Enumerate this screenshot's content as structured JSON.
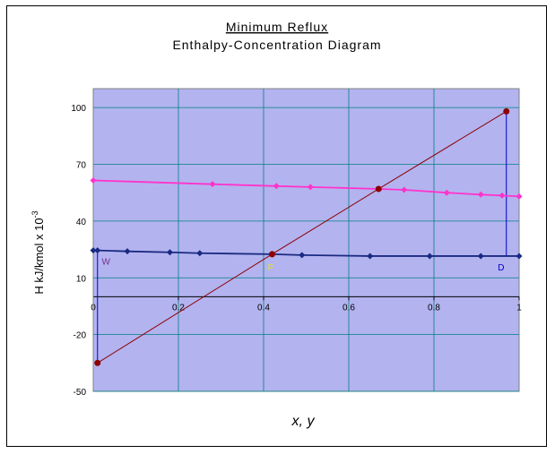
{
  "chart_data": {
    "type": "line",
    "title": "Minimum Reflux",
    "subtitle": "Enthalpy-Concentration Diagram",
    "xlabel": "x, y",
    "ylabel": "H  kJ/kmol x 10",
    "ylabel_exp": "-3",
    "xlim": [
      0,
      1
    ],
    "ylim": [
      -50,
      110
    ],
    "x_ticks": [
      0,
      0.2,
      0.4,
      0.6,
      0.8,
      1
    ],
    "x_tick_labels": [
      "0",
      "0.2",
      "0.4",
      "0.6",
      "0.8",
      "1"
    ],
    "y_ticks": [
      -50,
      -20,
      10,
      40,
      70,
      100
    ],
    "y_tick_labels": [
      "-50",
      "-20",
      "10",
      "40",
      "70",
      "100"
    ],
    "grid": true,
    "plot_bg": "#b3b3f0",
    "series": [
      {
        "color": "#ff33cc",
        "points": [
          [
            0,
            61.5
          ],
          [
            0.28,
            59.5
          ],
          [
            0.43,
            58.5
          ],
          [
            0.51,
            58
          ],
          [
            0.67,
            57
          ],
          [
            0.73,
            56.5
          ],
          [
            0.83,
            55
          ],
          [
            0.91,
            54
          ],
          [
            0.96,
            53.5
          ],
          [
            1.0,
            53
          ]
        ]
      },
      {
        "color": "#1a2a80",
        "points": [
          [
            0,
            24.5
          ],
          [
            0.01,
            24.5
          ],
          [
            0.08,
            24
          ],
          [
            0.18,
            23.5
          ],
          [
            0.25,
            23
          ],
          [
            0.42,
            22.5
          ],
          [
            0.49,
            22
          ],
          [
            0.65,
            21.5
          ],
          [
            0.79,
            21.5
          ],
          [
            0.91,
            21.5
          ],
          [
            1.0,
            21.5
          ]
        ]
      },
      {
        "color": "#8b0000",
        "markers": "circle",
        "points": [
          [
            0.01,
            -35
          ],
          [
            0.42,
            22.5
          ],
          [
            0.67,
            57
          ],
          [
            0.97,
            98
          ]
        ]
      }
    ],
    "verticals": [
      {
        "color": "#0000cc",
        "x": 0.01,
        "y1": 24.5,
        "y2": -35
      },
      {
        "color": "#0000cc",
        "x": 0.97,
        "y1": 98,
        "y2": 21.5
      }
    ],
    "annotations": [
      {
        "text": "W",
        "x": 0.02,
        "y": 17,
        "color": "#7a2e8a"
      },
      {
        "text": "F",
        "x": 0.41,
        "y": 14,
        "color": "#e6e600"
      },
      {
        "text": "D",
        "x": 0.95,
        "y": 14,
        "color": "#0000cc"
      }
    ]
  }
}
